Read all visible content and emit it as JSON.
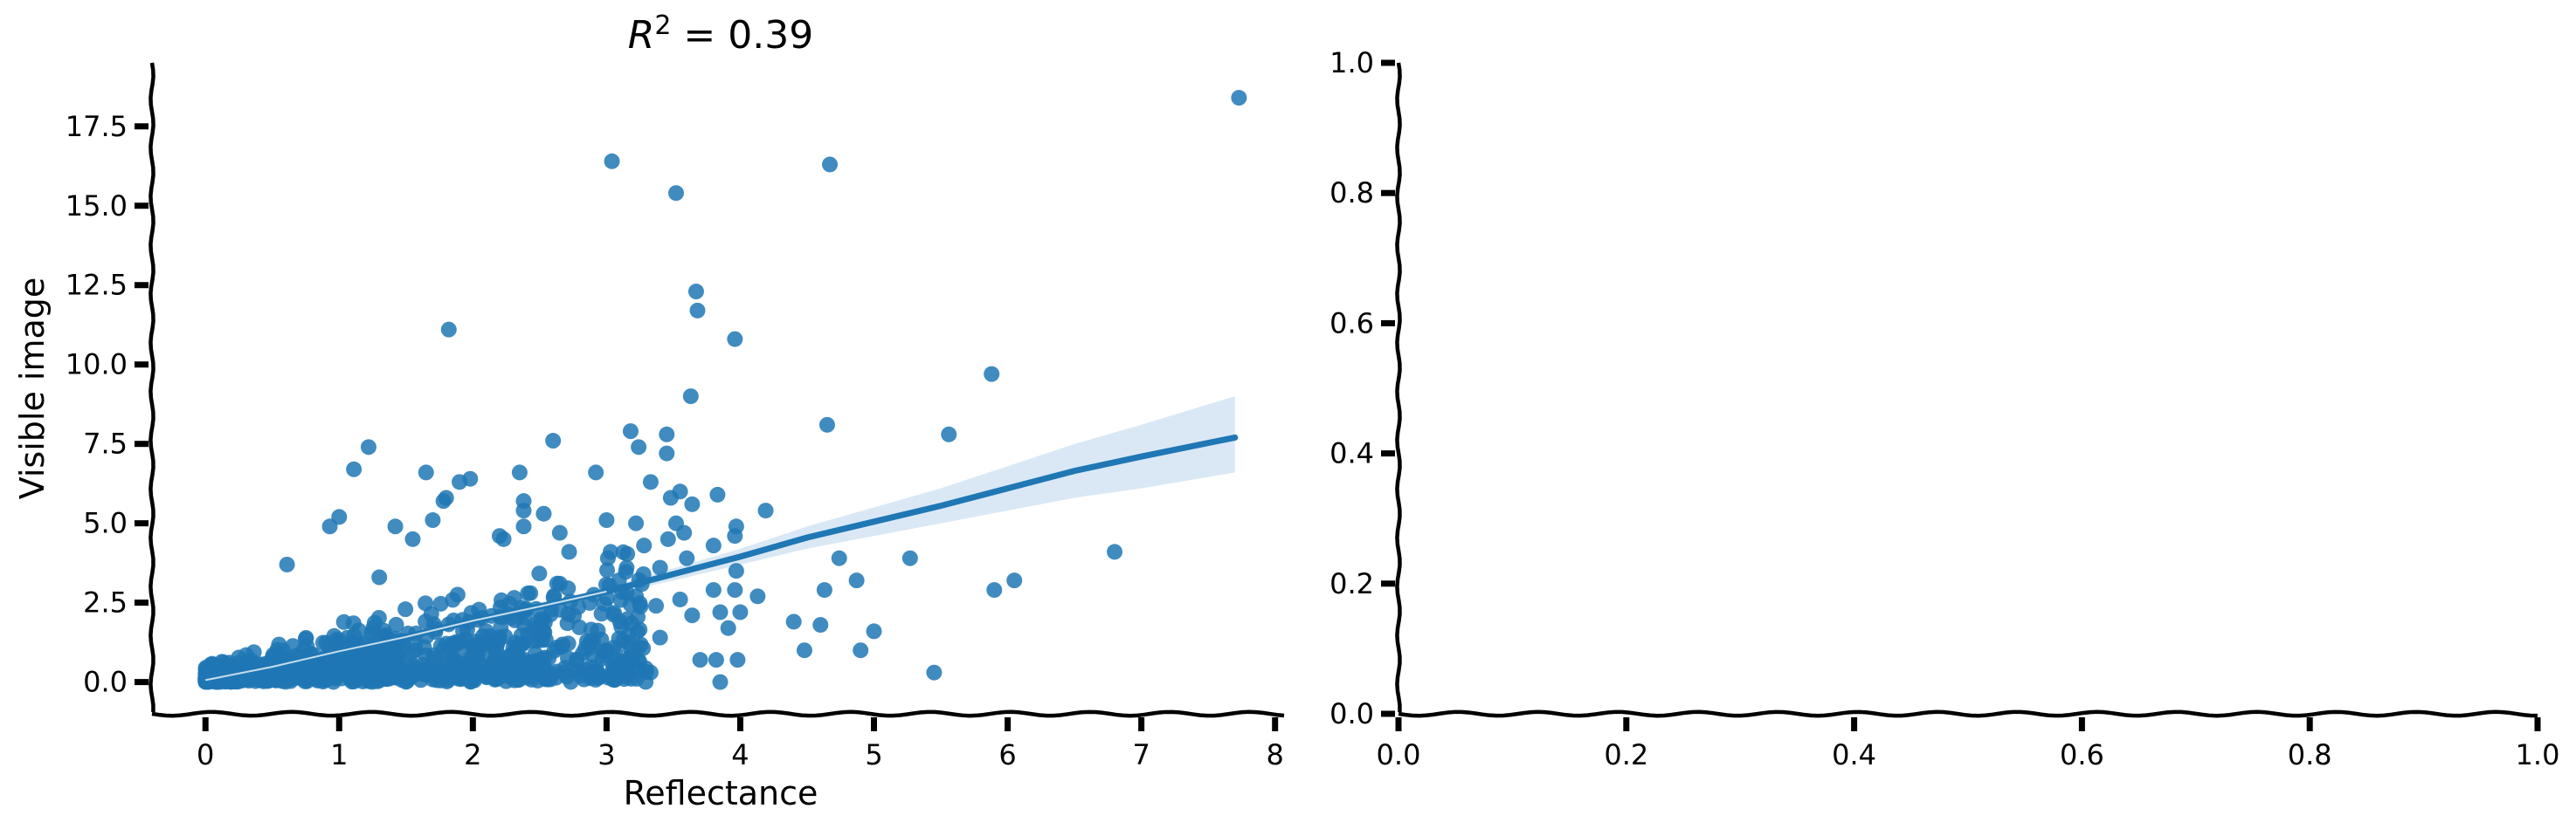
{
  "chart_data": [
    {
      "type": "scatter",
      "title": "R² = 0.39",
      "xlabel": "Reflectance",
      "ylabel": "Visible image",
      "xlim": [
        -0.4,
        8.1
      ],
      "ylim": [
        -1.0,
        19.5
      ],
      "x_ticks": [
        0,
        1,
        2,
        3,
        4,
        5,
        6,
        7,
        8
      ],
      "x_tick_labels": [
        "0",
        "1",
        "2",
        "3",
        "4",
        "5",
        "6",
        "7",
        "8"
      ],
      "y_ticks": [
        0,
        2.5,
        5,
        7.5,
        10,
        12.5,
        15,
        17.5
      ],
      "y_tick_labels": [
        "0.0",
        "2.5",
        "5.0",
        "7.5",
        "10.0",
        "12.5",
        "15.0",
        "17.5"
      ],
      "grid": false,
      "point_color": "#1f77b4",
      "band_color": "#c6dbef",
      "points": [
        [
          7.73,
          18.4
        ],
        [
          3.04,
          16.4
        ],
        [
          4.67,
          16.3
        ],
        [
          3.52,
          15.4
        ],
        [
          3.67,
          12.3
        ],
        [
          3.68,
          11.7
        ],
        [
          1.82,
          11.1
        ],
        [
          3.96,
          10.8
        ],
        [
          5.88,
          9.7
        ],
        [
          3.63,
          9.0
        ],
        [
          4.65,
          8.1
        ],
        [
          3.18,
          7.9
        ],
        [
          3.45,
          7.8
        ],
        [
          5.56,
          7.8
        ],
        [
          2.6,
          7.6
        ],
        [
          3.24,
          7.4
        ],
        [
          1.22,
          7.4
        ],
        [
          3.45,
          7.2
        ],
        [
          1.11,
          6.7
        ],
        [
          2.92,
          6.6
        ],
        [
          2.35,
          6.6
        ],
        [
          1.65,
          6.6
        ],
        [
          1.98,
          6.4
        ],
        [
          3.33,
          6.3
        ],
        [
          1.9,
          6.3
        ],
        [
          3.55,
          6.0
        ],
        [
          3.83,
          5.9
        ],
        [
          3.48,
          5.8
        ],
        [
          1.8,
          5.8
        ],
        [
          2.38,
          5.7
        ],
        [
          1.78,
          5.7
        ],
        [
          3.64,
          5.6
        ],
        [
          2.38,
          5.4
        ],
        [
          4.19,
          5.4
        ],
        [
          2.53,
          5.3
        ],
        [
          1.0,
          5.2
        ],
        [
          1.7,
          5.1
        ],
        [
          3.0,
          5.1
        ],
        [
          3.22,
          5.0
        ],
        [
          3.52,
          5.0
        ],
        [
          0.93,
          4.9
        ],
        [
          3.97,
          4.9
        ],
        [
          1.42,
          4.9
        ],
        [
          2.38,
          4.9
        ],
        [
          2.65,
          4.7
        ],
        [
          3.58,
          4.7
        ],
        [
          3.96,
          4.6
        ],
        [
          2.2,
          4.6
        ],
        [
          2.23,
          4.5
        ],
        [
          3.46,
          4.5
        ],
        [
          1.55,
          4.5
        ],
        [
          3.28,
          4.3
        ],
        [
          3.8,
          4.3
        ],
        [
          6.8,
          4.1
        ],
        [
          2.72,
          4.1
        ],
        [
          3.03,
          4.1
        ],
        [
          3.01,
          3.9
        ],
        [
          4.74,
          3.9
        ],
        [
          3.6,
          3.9
        ],
        [
          5.27,
          3.9
        ],
        [
          0.61,
          3.7
        ],
        [
          3.15,
          3.6
        ],
        [
          3.4,
          3.6
        ],
        [
          3.97,
          3.5
        ],
        [
          1.3,
          3.3
        ],
        [
          4.87,
          3.2
        ],
        [
          6.05,
          3.2
        ],
        [
          2.63,
          3.1
        ],
        [
          4.63,
          2.9
        ],
        [
          5.9,
          2.9
        ],
        [
          3.8,
          2.9
        ],
        [
          3.96,
          2.9
        ],
        [
          4.13,
          2.7
        ],
        [
          2.43,
          2.8
        ],
        [
          3.15,
          2.8
        ],
        [
          3.22,
          2.7
        ],
        [
          3.55,
          2.6
        ],
        [
          3.37,
          2.4
        ],
        [
          3.85,
          2.2
        ],
        [
          4.0,
          2.2
        ],
        [
          3.64,
          2.1
        ],
        [
          4.4,
          1.9
        ],
        [
          3.91,
          1.7
        ],
        [
          4.6,
          1.8
        ],
        [
          5.0,
          1.6
        ],
        [
          3.1,
          1.9
        ],
        [
          4.48,
          1.0
        ],
        [
          4.9,
          1.0
        ],
        [
          3.82,
          0.7
        ],
        [
          3.98,
          0.7
        ],
        [
          3.7,
          0.7
        ],
        [
          5.45,
          0.3
        ],
        [
          3.85,
          0.0
        ],
        [
          3.33,
          0.3
        ],
        [
          3.24,
          1.1
        ],
        [
          3.0,
          1.0
        ],
        [
          2.4,
          0.6
        ],
        [
          2.55,
          0.3
        ],
        [
          2.8,
          0.2
        ],
        [
          3.15,
          0.5
        ],
        [
          2.9,
          1.3
        ],
        [
          3.4,
          1.4
        ]
      ],
      "regression_line": [
        [
          0.0,
          0.06
        ],
        [
          0.5,
          0.48
        ],
        [
          1.0,
          0.97
        ],
        [
          1.5,
          1.42
        ],
        [
          2.0,
          1.93
        ],
        [
          2.5,
          2.38
        ],
        [
          3.0,
          2.85
        ],
        [
          3.5,
          3.4
        ],
        [
          4.0,
          3.95
        ],
        [
          4.5,
          4.55
        ],
        [
          5.0,
          5.05
        ],
        [
          5.5,
          5.55
        ],
        [
          6.0,
          6.1
        ],
        [
          6.5,
          6.65
        ],
        [
          7.0,
          7.1
        ],
        [
          7.7,
          7.7
        ]
      ],
      "confidence_band_upper": [
        [
          0.0,
          0.16
        ],
        [
          1.0,
          1.07
        ],
        [
          2.0,
          2.03
        ],
        [
          3.0,
          2.98
        ],
        [
          3.5,
          3.58
        ],
        [
          4.0,
          4.2
        ],
        [
          4.5,
          4.9
        ],
        [
          5.0,
          5.5
        ],
        [
          5.5,
          6.1
        ],
        [
          6.0,
          6.8
        ],
        [
          6.5,
          7.5
        ],
        [
          7.0,
          8.1
        ],
        [
          7.7,
          9.0
        ]
      ],
      "confidence_band_lower": [
        [
          0.0,
          -0.04
        ],
        [
          1.0,
          0.87
        ],
        [
          2.0,
          1.83
        ],
        [
          3.0,
          2.72
        ],
        [
          3.5,
          3.2
        ],
        [
          4.0,
          3.7
        ],
        [
          4.5,
          4.2
        ],
        [
          5.0,
          4.6
        ],
        [
          5.5,
          5.0
        ],
        [
          6.0,
          5.4
        ],
        [
          6.5,
          5.8
        ],
        [
          7.0,
          6.1
        ],
        [
          7.7,
          6.6
        ]
      ],
      "dense_cluster": {
        "x_range": [
          0.0,
          3.4
        ],
        "note_free": true
      }
    },
    {
      "type": "scatter",
      "title": "",
      "xlabel": "",
      "ylabel": "",
      "xlim": [
        0.0,
        1.0
      ],
      "ylim": [
        0.0,
        1.0
      ],
      "x_ticks": [
        0,
        0.2,
        0.4,
        0.6,
        0.8,
        1.0
      ],
      "x_tick_labels": [
        "0.0",
        "0.2",
        "0.4",
        "0.6",
        "0.8",
        "1.0"
      ],
      "y_ticks": [
        0,
        0.2,
        0.4,
        0.6,
        0.8,
        1.0
      ],
      "y_tick_labels": [
        "0.0",
        "0.2",
        "0.4",
        "0.6",
        "0.8",
        "1.0"
      ],
      "grid": false,
      "points": []
    }
  ]
}
